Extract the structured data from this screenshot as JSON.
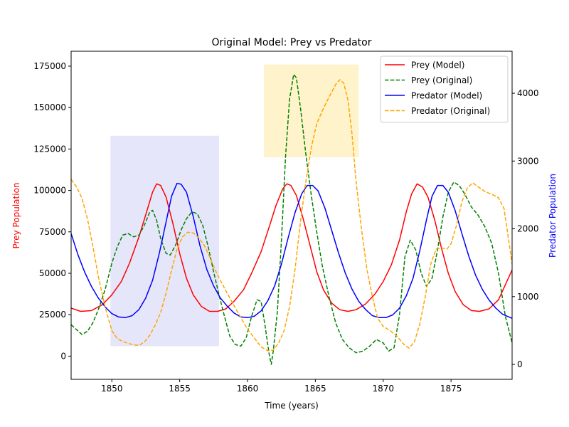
{
  "chart_data": {
    "type": "line",
    "title": "Original Model: Prey vs Predator",
    "xlabel": "Time (years)",
    "ylabel_left": "Prey Population",
    "ylabel_right": "Predator Population",
    "xlim": [
      1847,
      1879.5
    ],
    "ylim_left": [
      -14000,
      184000
    ],
    "ylim_right": [
      -220,
      4620
    ],
    "x_ticks": [
      1850,
      1855,
      1860,
      1865,
      1870,
      1875
    ],
    "y_ticks_left": [
      0,
      25000,
      50000,
      75000,
      100000,
      125000,
      150000,
      175000
    ],
    "y_ticks_right": [
      0,
      1000,
      2000,
      3000,
      4000
    ],
    "grid": false,
    "legend_position": "top-right",
    "colors": {
      "prey_model": "#ff0000",
      "prey_original": "#008000",
      "predator_model": "#0000ff",
      "predator_original": "#ffa500",
      "ylabel_left": "#ff0000",
      "ylabel_right": "#0000ff",
      "shade_lavender": "#e6e6fa",
      "shade_yellow": "#fff3cc"
    },
    "shaded_regions": [
      {
        "x": [
          1849.9,
          1857.9
        ],
        "y_left": [
          6000,
          133000
        ],
        "color": "#e6e6fa"
      },
      {
        "x": [
          1861.2,
          1868.2
        ],
        "y_left": [
          120000,
          176000
        ],
        "color": "#fff3cc"
      }
    ],
    "series": [
      {
        "name": "Prey (Model)",
        "axis": "left",
        "style": "solid",
        "color": "#ff0000",
        "points": [
          [
            1847,
            29000
          ],
          [
            1847.7,
            27000
          ],
          [
            1848.5,
            27500
          ],
          [
            1849.3,
            31000
          ],
          [
            1850,
            37000
          ],
          [
            1850.7,
            45000
          ],
          [
            1851.3,
            56000
          ],
          [
            1852,
            72000
          ],
          [
            1852.6,
            88000
          ],
          [
            1853,
            99000
          ],
          [
            1853.3,
            104000
          ],
          [
            1853.6,
            103000
          ],
          [
            1854,
            96000
          ],
          [
            1854.5,
            80000
          ],
          [
            1855,
            62000
          ],
          [
            1855.5,
            47000
          ],
          [
            1856,
            37000
          ],
          [
            1856.6,
            30000
          ],
          [
            1857.2,
            27000
          ],
          [
            1857.8,
            27000
          ],
          [
            1858.4,
            28500
          ],
          [
            1859,
            33000
          ],
          [
            1859.7,
            40000
          ],
          [
            1860.3,
            50000
          ],
          [
            1861,
            63000
          ],
          [
            1861.6,
            78000
          ],
          [
            1862.1,
            91000
          ],
          [
            1862.6,
            101000
          ],
          [
            1862.9,
            104000
          ],
          [
            1863.2,
            103000
          ],
          [
            1863.6,
            97000
          ],
          [
            1864.1,
            83000
          ],
          [
            1864.6,
            67000
          ],
          [
            1865.1,
            51000
          ],
          [
            1865.6,
            40000
          ],
          [
            1866.2,
            32000
          ],
          [
            1866.8,
            28000
          ],
          [
            1867.4,
            27000
          ],
          [
            1868,
            28000
          ],
          [
            1868.7,
            31500
          ],
          [
            1869.4,
            37500
          ],
          [
            1870,
            45000
          ],
          [
            1870.6,
            55000
          ],
          [
            1871.2,
            70000
          ],
          [
            1871.7,
            87000
          ],
          [
            1872.1,
            98000
          ],
          [
            1872.5,
            104000
          ],
          [
            1872.9,
            102000
          ],
          [
            1873.3,
            96000
          ],
          [
            1873.8,
            82000
          ],
          [
            1874.3,
            65000
          ],
          [
            1874.8,
            50000
          ],
          [
            1875.3,
            39000
          ],
          [
            1875.9,
            31000
          ],
          [
            1876.5,
            27500
          ],
          [
            1877.1,
            27000
          ],
          [
            1877.8,
            28500
          ],
          [
            1878.5,
            34000
          ],
          [
            1879.5,
            52000
          ]
        ]
      },
      {
        "name": "Prey (Original)",
        "axis": "left",
        "style": "dashed",
        "color": "#008000",
        "points": [
          [
            1847,
            19000
          ],
          [
            1847.4,
            16000
          ],
          [
            1847.8,
            13000
          ],
          [
            1848.2,
            15000
          ],
          [
            1848.6,
            20000
          ],
          [
            1849,
            28000
          ],
          [
            1849.5,
            40000
          ],
          [
            1850,
            56000
          ],
          [
            1850.4,
            66000
          ],
          [
            1850.8,
            73000
          ],
          [
            1851.2,
            74000
          ],
          [
            1851.6,
            72000
          ],
          [
            1852,
            73000
          ],
          [
            1852.4,
            79000
          ],
          [
            1852.8,
            87000
          ],
          [
            1853,
            88000
          ],
          [
            1853.3,
            82000
          ],
          [
            1853.6,
            71000
          ],
          [
            1854,
            62000
          ],
          [
            1854.3,
            61000
          ],
          [
            1854.7,
            67000
          ],
          [
            1855.1,
            76000
          ],
          [
            1855.5,
            83000
          ],
          [
            1855.9,
            87000
          ],
          [
            1856.3,
            86000
          ],
          [
            1856.7,
            79000
          ],
          [
            1857.1,
            66000
          ],
          [
            1857.5,
            51000
          ],
          [
            1857.9,
            37000
          ],
          [
            1858.3,
            24000
          ],
          [
            1858.7,
            12000
          ],
          [
            1859.1,
            7000
          ],
          [
            1859.5,
            6000
          ],
          [
            1859.9,
            11000
          ],
          [
            1860.3,
            24000
          ],
          [
            1860.7,
            34000
          ],
          [
            1861,
            33000
          ],
          [
            1861.3,
            18000
          ],
          [
            1861.6,
            1000
          ],
          [
            1861.75,
            -5000
          ],
          [
            1861.9,
            3000
          ],
          [
            1862.2,
            27000
          ],
          [
            1862.5,
            70000
          ],
          [
            1862.8,
            120000
          ],
          [
            1863.1,
            155000
          ],
          [
            1863.4,
            170000
          ],
          [
            1863.6,
            168000
          ],
          [
            1863.9,
            150000
          ],
          [
            1864.3,
            122000
          ],
          [
            1864.7,
            97000
          ],
          [
            1865.1,
            75000
          ],
          [
            1865.5,
            55000
          ],
          [
            1866,
            36000
          ],
          [
            1866.5,
            20000
          ],
          [
            1867,
            10000
          ],
          [
            1867.5,
            5000
          ],
          [
            1868,
            2000
          ],
          [
            1868.5,
            3000
          ],
          [
            1869,
            6000
          ],
          [
            1869.5,
            10000
          ],
          [
            1870,
            8000
          ],
          [
            1870.4,
            3000
          ],
          [
            1870.8,
            5000
          ],
          [
            1871.2,
            25000
          ],
          [
            1871.6,
            60000
          ],
          [
            1872,
            70000
          ],
          [
            1872.4,
            64000
          ],
          [
            1872.8,
            50000
          ],
          [
            1873.2,
            42000
          ],
          [
            1873.6,
            47000
          ],
          [
            1874,
            64000
          ],
          [
            1874.4,
            84000
          ],
          [
            1874.8,
            99000
          ],
          [
            1875.2,
            105000
          ],
          [
            1875.6,
            103000
          ],
          [
            1876,
            98000
          ],
          [
            1876.5,
            90000
          ],
          [
            1877,
            85000
          ],
          [
            1877.5,
            78000
          ],
          [
            1878,
            68000
          ],
          [
            1878.5,
            50000
          ],
          [
            1879,
            24000
          ],
          [
            1879.5,
            8000
          ]
        ]
      },
      {
        "name": "Predator (Model)",
        "axis": "right",
        "style": "solid",
        "color": "#0000ff",
        "points": [
          [
            1847,
            1930
          ],
          [
            1847.5,
            1620
          ],
          [
            1848,
            1360
          ],
          [
            1848.5,
            1150
          ],
          [
            1849,
            980
          ],
          [
            1849.5,
            850
          ],
          [
            1850,
            750
          ],
          [
            1850.5,
            700
          ],
          [
            1851,
            690
          ],
          [
            1851.5,
            720
          ],
          [
            1852,
            810
          ],
          [
            1852.5,
            980
          ],
          [
            1853,
            1240
          ],
          [
            1853.5,
            1640
          ],
          [
            1854,
            2100
          ],
          [
            1854.4,
            2480
          ],
          [
            1854.8,
            2670
          ],
          [
            1855.1,
            2660
          ],
          [
            1855.5,
            2540
          ],
          [
            1856,
            2180
          ],
          [
            1856.5,
            1750
          ],
          [
            1857,
            1400
          ],
          [
            1857.5,
            1160
          ],
          [
            1858,
            980
          ],
          [
            1858.5,
            860
          ],
          [
            1859,
            760
          ],
          [
            1859.5,
            700
          ],
          [
            1860,
            690
          ],
          [
            1860.5,
            710
          ],
          [
            1861,
            790
          ],
          [
            1861.5,
            940
          ],
          [
            1862,
            1160
          ],
          [
            1862.5,
            1480
          ],
          [
            1863,
            1870
          ],
          [
            1863.5,
            2240
          ],
          [
            1864,
            2520
          ],
          [
            1864.4,
            2640
          ],
          [
            1864.8,
            2640
          ],
          [
            1865.2,
            2560
          ],
          [
            1865.7,
            2310
          ],
          [
            1866.2,
            1980
          ],
          [
            1866.7,
            1650
          ],
          [
            1867.2,
            1350
          ],
          [
            1867.7,
            1110
          ],
          [
            1868.2,
            930
          ],
          [
            1868.7,
            810
          ],
          [
            1869.2,
            720
          ],
          [
            1869.7,
            690
          ],
          [
            1870.2,
            690
          ],
          [
            1870.7,
            730
          ],
          [
            1871.2,
            830
          ],
          [
            1871.7,
            1010
          ],
          [
            1872.2,
            1270
          ],
          [
            1872.7,
            1680
          ],
          [
            1873.2,
            2140
          ],
          [
            1873.6,
            2480
          ],
          [
            1874,
            2640
          ],
          [
            1874.4,
            2640
          ],
          [
            1874.8,
            2540
          ],
          [
            1875.3,
            2270
          ],
          [
            1875.8,
            1930
          ],
          [
            1876.3,
            1600
          ],
          [
            1876.8,
            1320
          ],
          [
            1877.3,
            1110
          ],
          [
            1877.8,
            950
          ],
          [
            1878.3,
            830
          ],
          [
            1878.8,
            740
          ],
          [
            1879.5,
            680
          ]
        ]
      },
      {
        "name": "Predator (Original)",
        "axis": "right",
        "style": "dashed",
        "color": "#ffa500",
        "points": [
          [
            1847,
            2730
          ],
          [
            1847.4,
            2620
          ],
          [
            1847.8,
            2450
          ],
          [
            1848.2,
            2150
          ],
          [
            1848.6,
            1750
          ],
          [
            1849,
            1300
          ],
          [
            1849.5,
            850
          ],
          [
            1850,
            500
          ],
          [
            1850.4,
            380
          ],
          [
            1850.8,
            340
          ],
          [
            1851.2,
            310
          ],
          [
            1851.6,
            290
          ],
          [
            1852,
            280
          ],
          [
            1852.4,
            330
          ],
          [
            1852.8,
            430
          ],
          [
            1853.2,
            580
          ],
          [
            1853.6,
            770
          ],
          [
            1854,
            1050
          ],
          [
            1854.4,
            1390
          ],
          [
            1854.8,
            1700
          ],
          [
            1855.2,
            1880
          ],
          [
            1855.6,
            1950
          ],
          [
            1856,
            1940
          ],
          [
            1856.4,
            1870
          ],
          [
            1856.8,
            1760
          ],
          [
            1857.2,
            1590
          ],
          [
            1857.6,
            1400
          ],
          [
            1858,
            1240
          ],
          [
            1858.5,
            1050
          ],
          [
            1859,
            870
          ],
          [
            1859.5,
            690
          ],
          [
            1860,
            520
          ],
          [
            1860.5,
            390
          ],
          [
            1861,
            260
          ],
          [
            1861.5,
            200
          ],
          [
            1861.9,
            210
          ],
          [
            1862.3,
            320
          ],
          [
            1862.7,
            500
          ],
          [
            1863.1,
            850
          ],
          [
            1863.5,
            1400
          ],
          [
            1863.9,
            2100
          ],
          [
            1864.3,
            2700
          ],
          [
            1864.7,
            3200
          ],
          [
            1865.1,
            3550
          ],
          [
            1865.6,
            3780
          ],
          [
            1866.1,
            3980
          ],
          [
            1866.5,
            4130
          ],
          [
            1866.8,
            4200
          ],
          [
            1867.1,
            4150
          ],
          [
            1867.4,
            3900
          ],
          [
            1867.7,
            3400
          ],
          [
            1868,
            2700
          ],
          [
            1868.4,
            2000
          ],
          [
            1868.8,
            1400
          ],
          [
            1869.2,
            1000
          ],
          [
            1869.6,
            680
          ],
          [
            1870,
            560
          ],
          [
            1870.5,
            500
          ],
          [
            1871,
            420
          ],
          [
            1871.5,
            300
          ],
          [
            1871.9,
            240
          ],
          [
            1872.3,
            330
          ],
          [
            1872.7,
            600
          ],
          [
            1873.1,
            1000
          ],
          [
            1873.5,
            1480
          ],
          [
            1873.9,
            1700
          ],
          [
            1874.3,
            1720
          ],
          [
            1874.7,
            1700
          ],
          [
            1875,
            1780
          ],
          [
            1875.4,
            2050
          ],
          [
            1875.8,
            2400
          ],
          [
            1876.2,
            2600
          ],
          [
            1876.6,
            2680
          ],
          [
            1877,
            2620
          ],
          [
            1877.5,
            2550
          ],
          [
            1878,
            2510
          ],
          [
            1878.5,
            2460
          ],
          [
            1878.9,
            2300
          ],
          [
            1879.2,
            1900
          ],
          [
            1879.5,
            1480
          ]
        ]
      }
    ]
  }
}
